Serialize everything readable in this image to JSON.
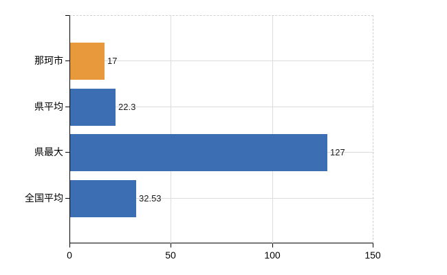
{
  "chart_data": {
    "type": "bar",
    "orientation": "horizontal",
    "title": "",
    "xlabel": "",
    "ylabel": "",
    "categories": [
      "那珂市",
      "県平均",
      "県最大",
      "全国平均"
    ],
    "values": [
      17,
      22.3,
      127,
      32.53
    ],
    "value_labels": [
      "17",
      "22.3",
      "127",
      "32.53"
    ],
    "series": [
      {
        "name": "",
        "values": [
          17,
          22.3,
          127,
          32.53
        ],
        "bar_colors": [
          "#E8993B",
          "#3C6EB4",
          "#3C6EB4",
          "#3C6EB4"
        ]
      }
    ],
    "xlim": [
      0,
      150
    ],
    "x_ticks": [
      0,
      50,
      100,
      150
    ],
    "x_tick_labels": [
      "0",
      "50",
      "100",
      "150"
    ],
    "grid": true,
    "legend": false,
    "legend_position": "none",
    "colors": {
      "highlight_bar": "#E8993B",
      "default_bar": "#3C6EB4",
      "axis_line": "#000000",
      "h_gridline": "#D8DDD8",
      "v_gridline": "#DCDCDC",
      "dashed_border": "#D0D0D0",
      "text": "#1A1A1A",
      "background": "#FFFFFF"
    }
  }
}
